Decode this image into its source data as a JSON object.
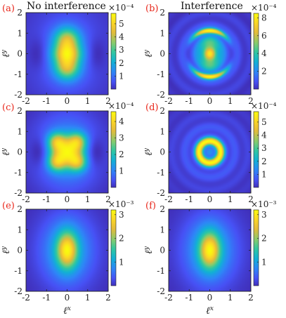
{
  "column_titles": [
    "No interference",
    "Interference"
  ],
  "x_axis_label": "ℓ",
  "x_axis_label_sup": "x",
  "y_axis_label": "ℓ",
  "y_axis_label_sup": "y",
  "colormap": [
    "#3e26a8",
    "#4751f5",
    "#2e87f7",
    "#12b0d6",
    "#2fc7a1",
    "#8ccb6a",
    "#e2ba3c",
    "#fbd527",
    "#f9fb0e"
  ],
  "chart_data": [
    {
      "panel": "(a)",
      "type": "heatmap",
      "pattern": "two-lobe",
      "xlim": [
        -2,
        2
      ],
      "ylim": [
        -2,
        2
      ],
      "xticks": [
        -2,
        -1,
        0,
        1,
        2
      ],
      "yticks": [
        -2,
        -1,
        0,
        1,
        2
      ],
      "colorbar": {
        "min": 0,
        "max": 5.8,
        "ticks": [
          1,
          2,
          3,
          4,
          5
        ],
        "exponent": "×10⁻⁴"
      }
    },
    {
      "panel": "(b)",
      "type": "heatmap",
      "pattern": "rings",
      "xlim": [
        -2,
        2
      ],
      "ylim": [
        -2,
        2
      ],
      "xticks": [
        -2,
        -1,
        0,
        1,
        2
      ],
      "yticks": [
        -2,
        -1,
        0,
        1,
        2
      ],
      "colorbar": {
        "min": 0,
        "max": 8.5,
        "ticks": [
          2,
          4,
          6,
          8
        ],
        "exponent": "×10⁻⁴"
      }
    },
    {
      "panel": "(c)",
      "type": "heatmap",
      "pattern": "cross",
      "xlim": [
        -2,
        2
      ],
      "ylim": [
        -2,
        2
      ],
      "xticks": [
        -2,
        -1,
        0,
        1,
        2
      ],
      "yticks": [
        -2,
        -1,
        0,
        1,
        2
      ],
      "colorbar": {
        "min": 0,
        "max": 4.6,
        "ticks": [
          1,
          2,
          3,
          4
        ],
        "exponent": "×10⁻⁴"
      }
    },
    {
      "panel": "(d)",
      "type": "heatmap",
      "pattern": "ring",
      "xlim": [
        -2,
        2
      ],
      "ylim": [
        -2,
        2
      ],
      "xticks": [
        -2,
        -1,
        0,
        1,
        2
      ],
      "yticks": [
        -2,
        -1,
        0,
        1,
        2
      ],
      "colorbar": {
        "min": 0,
        "max": 5.8,
        "ticks": [
          1,
          2,
          3,
          4,
          5
        ],
        "exponent": "×10⁻⁴"
      }
    },
    {
      "panel": "(e)",
      "type": "heatmap",
      "pattern": "central",
      "xlim": [
        -2,
        2
      ],
      "ylim": [
        -2,
        2
      ],
      "xticks": [
        -2,
        -1,
        0,
        1,
        2
      ],
      "yticks": [
        -2,
        -1,
        0,
        1,
        2
      ],
      "colorbar": {
        "min": 0,
        "max": 3.2,
        "ticks": [
          1,
          2,
          3
        ],
        "exponent": "×10⁻³"
      }
    },
    {
      "panel": "(f)",
      "type": "heatmap",
      "pattern": "central",
      "xlim": [
        -2,
        2
      ],
      "ylim": [
        -2,
        2
      ],
      "xticks": [
        -2,
        -1,
        0,
        1,
        2
      ],
      "yticks": [
        -2,
        -1,
        0,
        1,
        2
      ],
      "colorbar": {
        "min": 0,
        "max": 3.2,
        "ticks": [
          1,
          2,
          3
        ],
        "exponent": "×10⁻³"
      }
    }
  ]
}
